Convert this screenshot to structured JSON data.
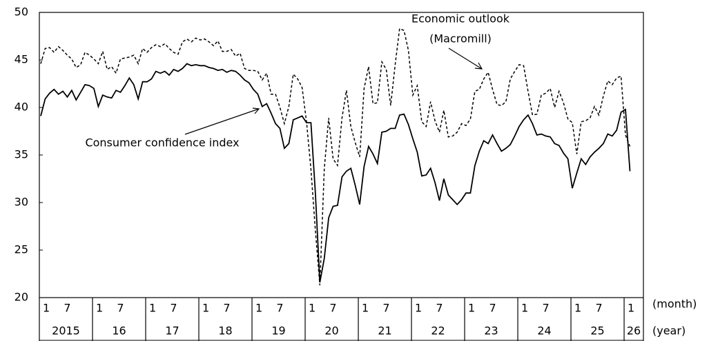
{
  "chart_data": {
    "type": "line",
    "categories": [
      "1",
      null,
      null,
      null,
      null,
      null,
      "7",
      null,
      null,
      null,
      null,
      null,
      "1",
      null,
      null,
      null,
      null,
      null,
      "7",
      null,
      null,
      null,
      null,
      null,
      "1",
      null,
      null,
      null,
      null,
      null,
      "7",
      null,
      null,
      null,
      null,
      null,
      "1",
      null,
      null,
      null,
      null,
      null,
      "7",
      null,
      null,
      null,
      null,
      null,
      "1",
      null,
      null,
      null,
      null,
      null,
      "7",
      null,
      null,
      null,
      null,
      null,
      "1",
      null,
      null,
      null,
      null,
      null,
      "7",
      null,
      null,
      null,
      null,
      null,
      "1",
      null,
      null,
      null,
      null,
      null,
      "7",
      null,
      null,
      null,
      null,
      null,
      "1",
      null,
      null,
      null,
      null,
      null,
      "7",
      null,
      null,
      null,
      null,
      null,
      "1",
      null,
      null,
      null,
      null,
      null,
      "7",
      null,
      null,
      null,
      null,
      null,
      "1",
      null,
      null,
      null,
      null,
      null,
      "7",
      null,
      null,
      null,
      null,
      null,
      "1",
      null,
      null,
      null,
      null,
      null,
      "7",
      null,
      null,
      null,
      null,
      null,
      "1",
      null
    ],
    "years": [
      "2015",
      "16",
      "17",
      "18",
      "19",
      "20",
      "21",
      "22",
      "23",
      "24",
      "25",
      "26"
    ],
    "month_axis_label": "(month)",
    "year_axis_label": "(year)",
    "ylim": [
      20,
      50
    ],
    "yticks": [
      20,
      25,
      30,
      35,
      40,
      45,
      50
    ],
    "annotations": [
      {
        "lines": [
          "Economic outlook",
          "(Macromill)"
        ]
      },
      {
        "text": "Consumer confidence index"
      }
    ],
    "series": [
      {
        "style": "dashed",
        "color": "#000000",
        "values": [
          44.6,
          46.2,
          46.3,
          45.8,
          46.4,
          46.0,
          45.5,
          45.1,
          44.2,
          44.5,
          45.8,
          45.5,
          45.1,
          44.6,
          45.9,
          44.0,
          44.3,
          43.6,
          45.1,
          45.2,
          45.3,
          45.5,
          44.6,
          46.2,
          45.8,
          46.3,
          46.6,
          46.4,
          46.7,
          46.2,
          45.8,
          45.6,
          46.9,
          47.2,
          46.9,
          47.3,
          47.1,
          47.2,
          46.9,
          46.5,
          47.0,
          45.9,
          45.9,
          46.1,
          45.4,
          45.7,
          44.1,
          43.9,
          43.9,
          43.8,
          42.9,
          43.6,
          41.4,
          41.4,
          40.0,
          38.3,
          40.1,
          43.5,
          43.0,
          42.1,
          38.5,
          33.5,
          27.0,
          21.3,
          33.5,
          38.9,
          34.6,
          33.9,
          38.9,
          41.8,
          38.0,
          36.3,
          34.8,
          42.0,
          44.3,
          40.4,
          40.5,
          44.8,
          44.0,
          40.2,
          44.5,
          48.3,
          48.1,
          46.0,
          41.3,
          42.3,
          38.5,
          38.0,
          40.6,
          38.6,
          37.4,
          39.7,
          36.9,
          37.0,
          37.4,
          38.3,
          38.1,
          38.8,
          41.7,
          41.9,
          43.0,
          43.7,
          41.9,
          40.3,
          40.2,
          40.6,
          43.0,
          43.8,
          44.5,
          44.4,
          41.7,
          39.2,
          39.3,
          41.3,
          41.5,
          42.0,
          40.0,
          41.7,
          40.5,
          38.8,
          38.4,
          35.1,
          38.5,
          38.6,
          38.9,
          40.1,
          39.2,
          41.2,
          42.8,
          42.4,
          43.1,
          43.3,
          37.1,
          35.9
        ]
      },
      {
        "style": "solid",
        "color": "#000000",
        "values": [
          39.1,
          40.9,
          41.5,
          41.9,
          41.4,
          41.7,
          41.1,
          41.8,
          40.8,
          41.6,
          42.4,
          42.3,
          42.0,
          40.1,
          41.3,
          41.1,
          41.0,
          41.8,
          41.6,
          42.3,
          43.1,
          42.4,
          40.9,
          42.7,
          42.7,
          43.0,
          43.8,
          43.6,
          43.8,
          43.4,
          44.0,
          43.8,
          44.1,
          44.6,
          44.4,
          44.5,
          44.4,
          44.4,
          44.2,
          44.1,
          43.9,
          44.0,
          43.7,
          43.9,
          43.8,
          43.4,
          42.9,
          42.6,
          41.9,
          41.4,
          40.1,
          40.4,
          39.4,
          38.3,
          37.8,
          35.7,
          36.2,
          38.7,
          38.9,
          39.1,
          38.4,
          38.4,
          30.9,
          21.6,
          24.1,
          28.4,
          29.6,
          29.7,
          32.7,
          33.3,
          33.6,
          31.8,
          29.8,
          33.8,
          35.9,
          35.1,
          34.1,
          37.4,
          37.5,
          37.8,
          37.8,
          39.2,
          39.3,
          38.2,
          36.7,
          35.3,
          32.8,
          32.9,
          33.6,
          32.1,
          30.2,
          32.5,
          30.8,
          30.3,
          29.8,
          30.3,
          31.0,
          31.0,
          33.9,
          35.4,
          36.5,
          36.2,
          37.1,
          36.2,
          35.4,
          35.7,
          36.1,
          37.0,
          38.0,
          38.7,
          39.2,
          38.3,
          37.1,
          37.2,
          37.0,
          36.9,
          36.2,
          36.0,
          35.2,
          34.6,
          31.5,
          33.1,
          34.6,
          34.0,
          34.8,
          35.3,
          35.7,
          36.2,
          37.2,
          37.0,
          37.6,
          39.5,
          39.8,
          33.3
        ]
      }
    ]
  }
}
